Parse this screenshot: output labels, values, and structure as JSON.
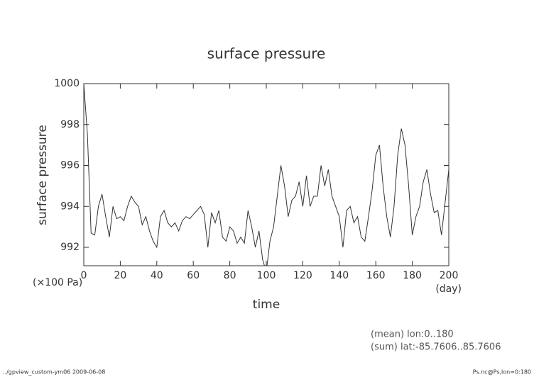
{
  "chart_data": {
    "type": "line",
    "title": "surface pressure",
    "y_label": "surface pressure",
    "x_label": "time",
    "y_unit": "(×100 Pa)",
    "x_unit": "(day)",
    "notes": [
      "(mean) lon:0..180",
      "(sum) lat:-85.7606..85.7606"
    ],
    "footer_left": "../gpview_custom-ym06  2009-06-08",
    "footer_right": "Ps.nc@Ps,lon=0:180",
    "xlim": [
      0,
      200
    ],
    "ylim": [
      991.1,
      1000
    ],
    "xticks": [
      0,
      20,
      40,
      60,
      80,
      100,
      120,
      140,
      160,
      180,
      200
    ],
    "yticks": [
      992,
      994,
      996,
      998,
      1000
    ],
    "x": [
      0,
      2,
      4,
      6,
      8,
      10,
      12,
      14,
      16,
      18,
      20,
      22,
      24,
      26,
      28,
      30,
      32,
      34,
      36,
      38,
      40,
      42,
      44,
      46,
      48,
      50,
      52,
      54,
      56,
      58,
      60,
      62,
      64,
      66,
      68,
      70,
      72,
      74,
      76,
      78,
      80,
      82,
      84,
      86,
      88,
      90,
      92,
      94,
      96,
      98,
      100,
      102,
      104,
      106,
      108,
      110,
      112,
      114,
      116,
      118,
      120,
      122,
      124,
      126,
      128,
      130,
      132,
      134,
      136,
      138,
      140,
      142,
      144,
      146,
      148,
      150,
      152,
      154,
      156,
      158,
      160,
      162,
      164,
      166,
      168,
      170,
      172,
      174,
      176,
      178,
      180,
      182,
      184,
      186,
      188,
      190,
      192,
      194,
      196,
      198,
      200
    ],
    "series": [
      {
        "color": "#333333",
        "values": [
          1000,
          997.5,
          992.7,
          992.6,
          994,
          994.6,
          993.5,
          992.5,
          994,
          993.4,
          993.5,
          993.3,
          994,
          994.5,
          994.2,
          994,
          993.1,
          993.5,
          992.8,
          992.3,
          992,
          993.5,
          993.8,
          993.2,
          993,
          993.2,
          992.8,
          993.3,
          993.5,
          993.4,
          993.6,
          993.8,
          994,
          993.6,
          992,
          993.7,
          993.2,
          993.8,
          992.5,
          992.3,
          993,
          992.8,
          992.2,
          992.5,
          992.2,
          993.8,
          993,
          992,
          992.8,
          991.4,
          990.8,
          992.3,
          993,
          994.5,
          996,
          995,
          993.5,
          994.3,
          994.5,
          995.2,
          994,
          995.5,
          994,
          994.5,
          994.5,
          996,
          995,
          995.8,
          994.5,
          994,
          993.5,
          992,
          993.8,
          994,
          993.2,
          993.5,
          992.5,
          992.3,
          993.5,
          994.8,
          996.5,
          997,
          995,
          993.5,
          992.5,
          994,
          996.5,
          997.8,
          997,
          995,
          992.6,
          993.5,
          994,
          995.2,
          995.8,
          994.6,
          993.7,
          993.8,
          992.6,
          994.2,
          995.8
        ]
      }
    ]
  }
}
